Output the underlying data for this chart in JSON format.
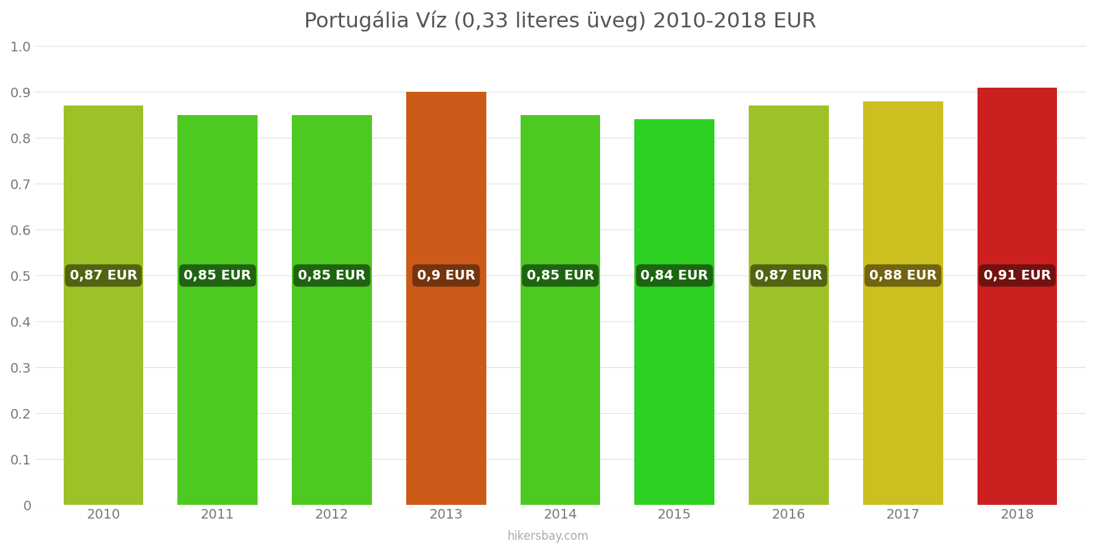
{
  "title": "Portugália Víz (0,33 literes üveg) 2010-2018 EUR",
  "years": [
    2010,
    2011,
    2012,
    2013,
    2014,
    2015,
    2016,
    2017,
    2018
  ],
  "values": [
    0.87,
    0.85,
    0.85,
    0.9,
    0.85,
    0.84,
    0.87,
    0.88,
    0.91
  ],
  "labels": [
    "0,87 EUR",
    "0,85 EUR",
    "0,85 EUR",
    "0,9 EUR",
    "0,85 EUR",
    "0,84 EUR",
    "0,87 EUR",
    "0,88 EUR",
    "0,91 EUR"
  ],
  "bar_colors": [
    "#9dc228",
    "#4ec921",
    "#4ec921",
    "#cc5a18",
    "#4ec921",
    "#2ed022",
    "#9dc228",
    "#ccc020",
    "#cc2020"
  ],
  "label_bg_colors": [
    "#4a5a10",
    "#1a5a10",
    "#1a5a10",
    "#6a3010",
    "#1a5a10",
    "#1a5a10",
    "#4a5a10",
    "#6a5a10",
    "#6a1010"
  ],
  "label_text_color": "#ffffff",
  "ylim": [
    0,
    1.0
  ],
  "yticks": [
    0,
    0.1,
    0.2,
    0.3,
    0.4,
    0.5,
    0.6,
    0.7,
    0.8,
    0.9,
    1.0
  ],
  "background_color": "#ffffff",
  "grid_color": "#e0e0e0",
  "title_fontsize": 22,
  "tick_fontsize": 14,
  "footer_text": "hikersbay.com",
  "footer_color": "#aaaaaa",
  "bar_width": 0.7
}
